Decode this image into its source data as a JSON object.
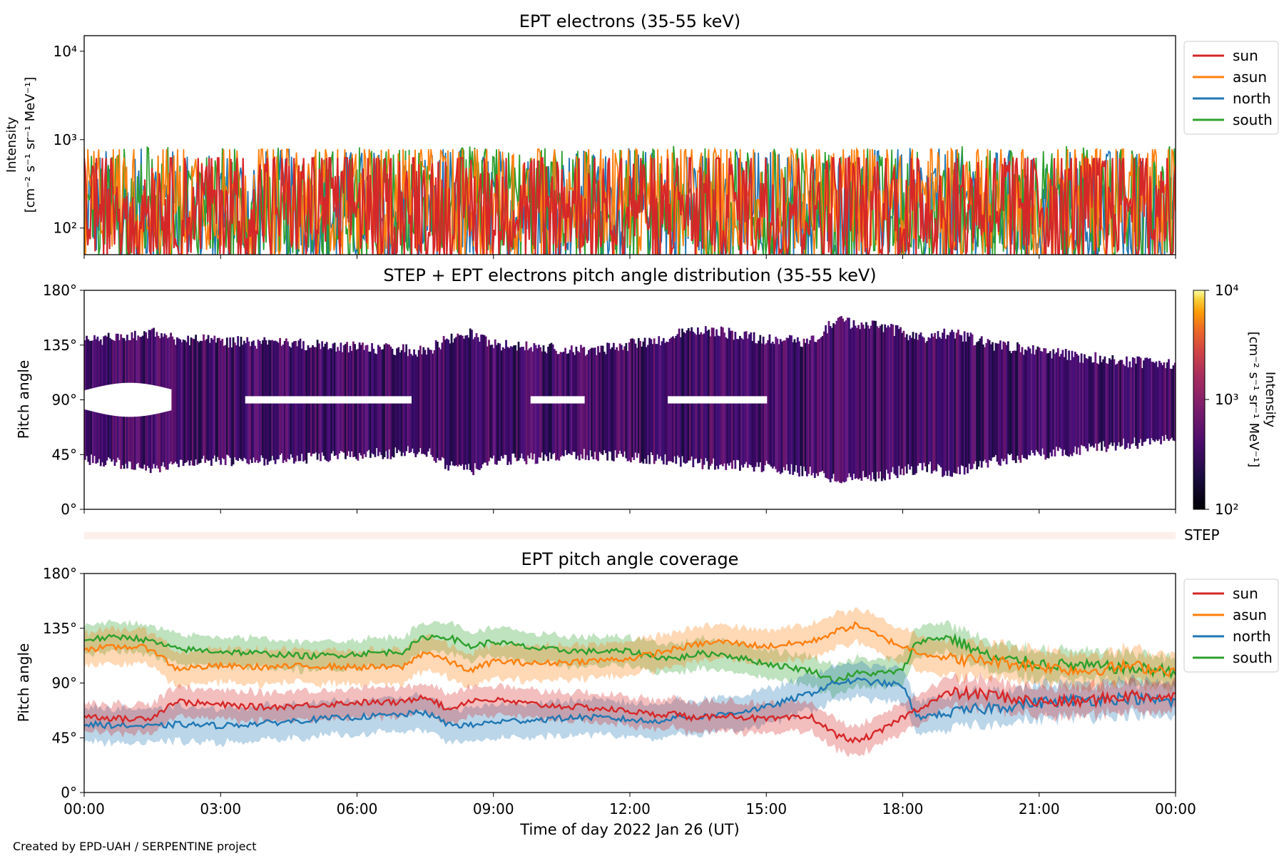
{
  "credit": "Created by EPD-UAH / SERPENTINE project",
  "xlabel": "Time of day 2022 Jan 26 (UT)",
  "x_ticks": [
    "00:00",
    "03:00",
    "06:00",
    "09:00",
    "12:00",
    "15:00",
    "18:00",
    "21:00",
    "00:00"
  ],
  "legend": {
    "sun": "sun",
    "asun": "asun",
    "north": "north",
    "south": "south"
  },
  "colors": {
    "sun": "#d62728",
    "asun": "#ff7f0e",
    "north": "#1f77b4",
    "south": "#2ca02c"
  },
  "chart_data": [
    {
      "type": "line",
      "title": "EPT electrons (35-55 keV)",
      "ylabel": [
        "Intensity",
        "[cm⁻² s⁻¹ sr⁻¹ MeV⁻¹]"
      ],
      "yscale": "log",
      "ylim": [
        50,
        15000
      ],
      "y_ticks": [
        100,
        1000,
        10000
      ],
      "y_tick_labels": [
        "10²",
        "10³",
        "10⁴"
      ],
      "xlim": [
        "2022-01-26T00:00",
        "2022-01-27T00:00"
      ],
      "legend_position": "outside right, top",
      "series": [
        {
          "name": "sun",
          "values_range": [
            50,
            620
          ],
          "typical": 200
        },
        {
          "name": "asun",
          "values_range": [
            50,
            780
          ],
          "typical": 240
        },
        {
          "name": "north",
          "values_range": [
            50,
            830
          ],
          "typical": 180
        },
        {
          "name": "south",
          "values_range": [
            50,
            850
          ],
          "typical": 190
        }
      ]
    },
    {
      "type": "heatmap",
      "title": "STEP + EPT electrons pitch angle distribution (35-55 keV)",
      "ylabel": "Pitch angle",
      "ylim": [
        0,
        180
      ],
      "y_ticks": [
        "0°",
        "45°",
        "90°",
        "135°",
        "180°"
      ],
      "colorbar": {
        "label": [
          "Intensity",
          "[cm⁻² s⁻¹ sr⁻¹ MeV⁻¹]"
        ],
        "scale": "log",
        "range": [
          100,
          10000
        ],
        "tick_labels": [
          "10²",
          "10³",
          "10⁴"
        ],
        "colormap": "inferno"
      },
      "coverage_envelope": {
        "hours": [
          0,
          1,
          1.5,
          2,
          3,
          5,
          7.5,
          8,
          8.5,
          9,
          11,
          12.5,
          13.5,
          15,
          16,
          16.5,
          17.5,
          18.5,
          19,
          20,
          22,
          24
        ],
        "upper_deg": [
          138,
          142,
          145,
          140,
          138,
          135,
          130,
          140,
          145,
          135,
          130,
          138,
          148,
          140,
          138,
          155,
          150,
          140,
          145,
          135,
          125,
          118
        ],
        "lower_deg": [
          42,
          36,
          34,
          38,
          40,
          42,
          48,
          35,
          32,
          40,
          45,
          42,
          38,
          35,
          30,
          25,
          28,
          35,
          30,
          40,
          50,
          58
        ],
        "gap_center_deg": 90
      }
    },
    {
      "type": "line",
      "label": "STEP",
      "description_strip": true
    },
    {
      "type": "area",
      "title": "EPT pitch angle coverage",
      "ylabel": "Pitch angle",
      "ylim": [
        0,
        180
      ],
      "y_ticks": [
        "0°",
        "45°",
        "90°",
        "135°",
        "180°"
      ],
      "legend_position": "outside right, top",
      "x_hours": [
        0,
        1,
        1.5,
        2,
        3,
        4,
        5,
        6,
        7,
        7.5,
        8,
        8.5,
        9,
        10,
        11,
        12,
        12.5,
        13,
        13.5,
        14,
        15,
        16,
        16.5,
        17,
        17.5,
        18,
        18.3,
        19,
        20,
        21,
        22,
        23,
        24
      ],
      "series": [
        {
          "name": "sun",
          "values": [
            63,
            60,
            62,
            75,
            72,
            70,
            72,
            74,
            74,
            80,
            68,
            76,
            76,
            72,
            70,
            67,
            64,
            65,
            60,
            64,
            60,
            62,
            48,
            42,
            50,
            62,
            68,
            82,
            80,
            74,
            75,
            80,
            78
          ],
          "band_halfwidth": 12
        },
        {
          "name": "asun",
          "values": [
            118,
            120,
            118,
            102,
            104,
            103,
            104,
            103,
            103,
            116,
            108,
            100,
            108,
            106,
            108,
            110,
            114,
            118,
            122,
            124,
            120,
            124,
            132,
            138,
            128,
            120,
            116,
            110,
            108,
            104,
            100,
            104,
            100
          ],
          "band_halfwidth": 14
        },
        {
          "name": "north",
          "values": [
            56,
            55,
            54,
            56,
            55,
            57,
            60,
            62,
            64,
            66,
            56,
            55,
            58,
            60,
            62,
            60,
            58,
            62,
            62,
            64,
            70,
            82,
            90,
            92,
            90,
            88,
            62,
            65,
            70,
            74,
            76,
            78,
            74
          ],
          "band_halfwidth": 14
        },
        {
          "name": "south",
          "values": [
            126,
            128,
            124,
            118,
            116,
            114,
            112,
            114,
            116,
            128,
            128,
            120,
            124,
            118,
            116,
            116,
            112,
            110,
            114,
            114,
            106,
            100,
            92,
            98,
            98,
            100,
            124,
            128,
            110,
            106,
            104,
            102,
            100
          ],
          "band_halfwidth": 12
        }
      ]
    }
  ]
}
